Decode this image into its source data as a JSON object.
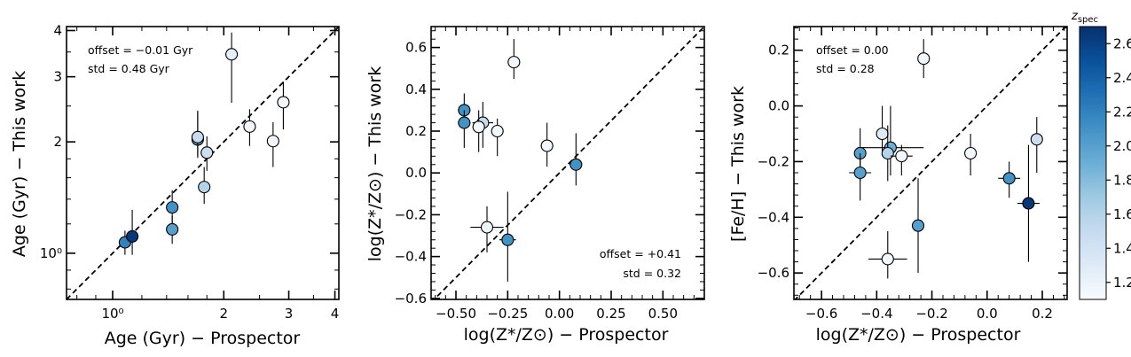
{
  "chart_data": [
    {
      "type": "scatter",
      "panel": "age",
      "xscale": "log",
      "yscale": "log",
      "xlim": [
        0.75,
        4.1
      ],
      "ylim": [
        0.75,
        4.1
      ],
      "xlabel": "Age (Gyr) − Prospector",
      "ylabel": "Age (Gyr) − This work",
      "xtick_values": [
        1,
        2,
        3,
        4
      ],
      "xtick_labels": [
        "10⁰",
        "2",
        "3",
        "4"
      ],
      "ytick_values": [
        1,
        2,
        3,
        4
      ],
      "ytick_labels": [
        "10⁰",
        "2",
        "3",
        "4"
      ],
      "one_to_one_line": true,
      "annotations": [
        {
          "text": "offset = −0.01 Gyr",
          "position": "top-left"
        },
        {
          "text": "std = 0.48 Gyr",
          "position": "top-left"
        }
      ],
      "points": [
        {
          "x": 1.08,
          "y": 1.07,
          "xerr": 0.03,
          "yerr_lo": 0.08,
          "yerr_hi": 0.08,
          "z": 2.2
        },
        {
          "x": 1.13,
          "y": 1.11,
          "xerr": 0.04,
          "yerr_lo": 0.12,
          "yerr_hi": 0.2,
          "z": 2.65
        },
        {
          "x": 1.45,
          "y": 1.16,
          "xerr": 0.05,
          "yerr_lo": 0.1,
          "yerr_hi": 0.1,
          "z": 2.0
        },
        {
          "x": 1.45,
          "y": 1.33,
          "xerr": 0.05,
          "yerr_lo": 0.12,
          "yerr_hi": 0.15,
          "z": 2.1
        },
        {
          "x": 1.7,
          "y": 2.03,
          "xerr": 0.05,
          "yerr_lo": 0.2,
          "yerr_hi": 0.4,
          "z": 2.0
        },
        {
          "x": 1.7,
          "y": 2.06,
          "xerr": 0.05,
          "yerr_lo": 0.25,
          "yerr_hi": 0.35,
          "z": 1.5
        },
        {
          "x": 1.77,
          "y": 1.51,
          "xerr": 0.05,
          "yerr_lo": 0.15,
          "yerr_hi": 0.2,
          "z": 1.6
        },
        {
          "x": 1.8,
          "y": 1.87,
          "xerr": 0.06,
          "yerr_lo": 0.2,
          "yerr_hi": 0.2,
          "z": 1.45
        },
        {
          "x": 2.1,
          "y": 3.45,
          "xerr": 0.08,
          "yerr_lo": 0.9,
          "yerr_hi": 0.5,
          "z": 1.25
        },
        {
          "x": 2.35,
          "y": 2.2,
          "xerr": 0.05,
          "yerr_lo": 0.25,
          "yerr_hi": 0.25,
          "z": 1.15
        },
        {
          "x": 2.72,
          "y": 2.01,
          "xerr": 0.05,
          "yerr_lo": 0.3,
          "yerr_hi": 0.25,
          "z": 1.15
        },
        {
          "x": 2.9,
          "y": 2.56,
          "xerr": 0.05,
          "yerr_lo": 0.4,
          "yerr_hi": 0.35,
          "z": 1.15
        }
      ]
    },
    {
      "type": "scatter",
      "panel": "metallicity",
      "xlim": [
        -0.62,
        0.7
      ],
      "ylim": [
        -0.605,
        0.7
      ],
      "xlabel": "log(Z*/Z⊙) − Prospector",
      "ylabel": "log(Z*/Z⊙) − This work",
      "xtick_values": [
        -0.5,
        -0.25,
        0.0,
        0.25,
        0.5
      ],
      "xtick_labels": [
        "−0.50",
        "−0.25",
        "0.00",
        "0.25",
        "0.50"
      ],
      "ytick_values": [
        -0.6,
        -0.4,
        -0.2,
        0.0,
        0.2,
        0.4,
        0.6
      ],
      "ytick_labels": [
        "−0.6",
        "−0.4",
        "−0.2",
        "0.0",
        "0.2",
        "0.4",
        "0.6"
      ],
      "one_to_one_line": true,
      "annotations": [
        {
          "text": "offset = +0.41",
          "position": "bottom-right"
        },
        {
          "text": "std = 0.32",
          "position": "bottom-right"
        }
      ],
      "points": [
        {
          "x": -0.46,
          "y": 0.3,
          "xerr": 0.03,
          "yerr_lo": 0.08,
          "yerr_hi": 0.08,
          "z": 2.1
        },
        {
          "x": -0.46,
          "y": 0.24,
          "xerr": 0.03,
          "yerr_lo": 0.12,
          "yerr_hi": 0.06,
          "z": 2.1
        },
        {
          "x": -0.37,
          "y": 0.24,
          "xerr": 0.05,
          "yerr_lo": 0.12,
          "yerr_hi": 0.1,
          "z": 1.5
        },
        {
          "x": -0.39,
          "y": 0.22,
          "xerr": 0.03,
          "yerr_lo": 0.12,
          "yerr_hi": 0.08,
          "z": 1.15
        },
        {
          "x": -0.3,
          "y": 0.2,
          "xerr": 0.03,
          "yerr_lo": 0.12,
          "yerr_hi": 0.06,
          "z": 1.15
        },
        {
          "x": -0.22,
          "y": 0.53,
          "xerr": 0.03,
          "yerr_lo": 0.08,
          "yerr_hi": 0.11,
          "z": 1.15
        },
        {
          "x": -0.06,
          "y": 0.13,
          "xerr": 0.03,
          "yerr_lo": 0.1,
          "yerr_hi": 0.11,
          "z": 1.15
        },
        {
          "x": 0.08,
          "y": 0.04,
          "xerr": 0.03,
          "yerr_lo": 0.1,
          "yerr_hi": 0.15,
          "z": 2.1
        },
        {
          "x": -0.35,
          "y": -0.26,
          "xerr": 0.08,
          "yerr_lo": 0.12,
          "yerr_hi": 0.1,
          "z": 1.2
        },
        {
          "x": -0.25,
          "y": -0.32,
          "xerr": 0.04,
          "yerr_lo": 0.2,
          "yerr_hi": 0.23,
          "z": 2.1
        }
      ]
    },
    {
      "type": "scatter",
      "panel": "iron",
      "xlim": [
        -0.7,
        0.29
      ],
      "ylim": [
        -0.695,
        0.285
      ],
      "xlabel": "log(Z*/Z⊙) − Prospector",
      "ylabel": "[Fe/H] − This work",
      "xtick_values": [
        -0.6,
        -0.4,
        -0.2,
        0.0,
        0.2
      ],
      "xtick_labels": [
        "−0.6",
        "−0.4",
        "−0.2",
        "0.0",
        "0.2"
      ],
      "ytick_values": [
        -0.6,
        -0.4,
        -0.2,
        0.0,
        0.2
      ],
      "ytick_labels": [
        "−0.6",
        "−0.4",
        "−0.2",
        "0.0",
        "0.2"
      ],
      "one_to_one_line": true,
      "annotations": [
        {
          "text": "offset = 0.00",
          "position": "top-left"
        },
        {
          "text": "std = 0.28",
          "position": "top-left"
        }
      ],
      "points": [
        {
          "x": -0.23,
          "y": 0.17,
          "xerr": 0.02,
          "yerr_lo": 0.07,
          "yerr_hi": 0.07,
          "z": 1.15
        },
        {
          "x": -0.38,
          "y": -0.1,
          "xerr": 0.02,
          "yerr_lo": 0.08,
          "yerr_hi": 0.1,
          "z": 1.3
        },
        {
          "x": -0.35,
          "y": -0.15,
          "xerr": 0.12,
          "yerr_lo": 0.1,
          "yerr_hi": 0.15,
          "z": 1.9
        },
        {
          "x": -0.36,
          "y": -0.17,
          "xerr": 0.02,
          "yerr_lo": 0.1,
          "yerr_hi": 0.1,
          "z": 1.6
        },
        {
          "x": -0.31,
          "y": -0.18,
          "xerr": 0.04,
          "yerr_lo": 0.07,
          "yerr_hi": 0.04,
          "z": 1.15
        },
        {
          "x": -0.46,
          "y": -0.17,
          "xerr": 0.02,
          "yerr_lo": 0.1,
          "yerr_hi": 0.09,
          "z": 2.0
        },
        {
          "x": -0.46,
          "y": -0.24,
          "xerr": 0.04,
          "yerr_lo": 0.1,
          "yerr_hi": 0.07,
          "z": 2.0
        },
        {
          "x": -0.06,
          "y": -0.17,
          "xerr": 0.02,
          "yerr_lo": 0.08,
          "yerr_hi": 0.07,
          "z": 1.15
        },
        {
          "x": 0.08,
          "y": -0.26,
          "xerr": 0.04,
          "yerr_lo": 0.07,
          "yerr_hi": 0.06,
          "z": 2.1
        },
        {
          "x": 0.18,
          "y": -0.12,
          "xerr": 0.02,
          "yerr_lo": 0.12,
          "yerr_hi": 0.08,
          "z": 1.45
        },
        {
          "x": 0.15,
          "y": -0.35,
          "xerr": 0.04,
          "yerr_lo": 0.21,
          "yerr_hi": 0.21,
          "z": 2.65
        },
        {
          "x": -0.25,
          "y": -0.43,
          "xerr": 0.02,
          "yerr_lo": 0.17,
          "yerr_hi": 0.17,
          "z": 2.0
        },
        {
          "x": -0.36,
          "y": -0.55,
          "xerr": 0.07,
          "yerr_lo": 0.07,
          "yerr_hi": 0.1,
          "z": 1.15
        }
      ]
    }
  ],
  "colorbar": {
    "label": "z",
    "label_subscript": "spec",
    "cmap": "Blues",
    "range": [
      1.1,
      2.7
    ],
    "tick_values": [
      1.2,
      1.4,
      1.6,
      1.8,
      2.0,
      2.2,
      2.4,
      2.6
    ],
    "tick_labels": [
      "1.2",
      "1.4",
      "1.6",
      "1.8",
      "2.0",
      "2.2",
      "2.4",
      "2.6"
    ]
  }
}
